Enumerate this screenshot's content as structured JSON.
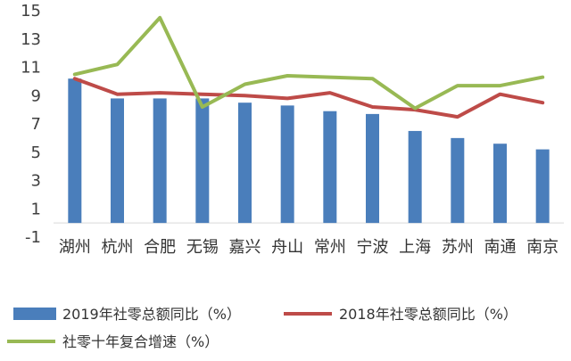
{
  "chart_data": {
    "type": "bar",
    "title": "",
    "xlabel": "",
    "ylabel": "",
    "categories": [
      "湖州",
      "杭州",
      "合肥",
      "无锡",
      "嘉兴",
      "舟山",
      "常州",
      "宁波",
      "上海",
      "苏州",
      "南通",
      "南京"
    ],
    "yticks": [
      "-1",
      "1",
      "3",
      "5",
      "7",
      "9",
      "11",
      "13",
      "15"
    ],
    "ylim": [
      -1,
      15
    ],
    "grid": false,
    "legend_position": "bottom",
    "series": [
      {
        "name": "2019年社零总额同比（%）",
        "kind": "bar",
        "color": "#4a7ebb",
        "values": [
          10.2,
          8.8,
          8.8,
          8.8,
          8.5,
          8.3,
          7.9,
          7.7,
          6.5,
          6.0,
          5.6,
          5.2
        ]
      },
      {
        "name": "2018年社零总额同比（%）",
        "kind": "line",
        "color": "#be4b48",
        "values": [
          10.2,
          9.1,
          9.2,
          9.1,
          9.0,
          8.8,
          9.2,
          8.2,
          8.0,
          7.5,
          9.1,
          8.5
        ]
      },
      {
        "name": "社零十年复合增速（%）",
        "kind": "line",
        "color": "#98b954",
        "values": [
          10.5,
          11.2,
          14.5,
          8.2,
          9.8,
          10.4,
          10.3,
          10.2,
          8.1,
          9.7,
          9.7,
          10.3
        ]
      }
    ]
  }
}
